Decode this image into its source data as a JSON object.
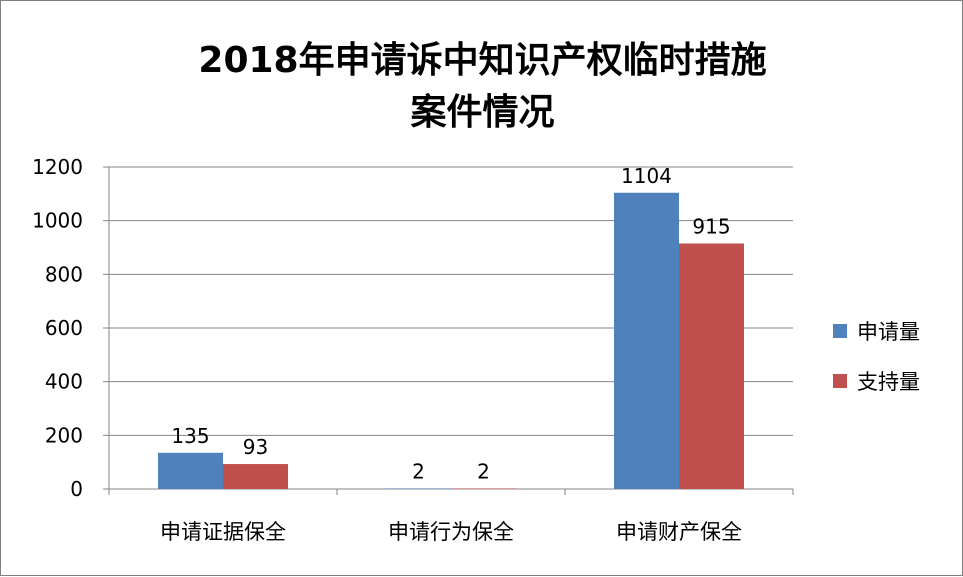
{
  "chart_data": {
    "type": "bar",
    "title_lines": [
      "2018年申请诉中知识产权临时措施",
      "案件情况"
    ],
    "categories": [
      "申请证据保全",
      "申请行为保全",
      "申请财产保全"
    ],
    "series": [
      {
        "name": "申请量",
        "color": "#4f81bd",
        "values": [
          135,
          2,
          1104
        ]
      },
      {
        "name": "支持量",
        "color": "#c0504d",
        "values": [
          93,
          2,
          915
        ]
      }
    ],
    "ylim": [
      0,
      1200
    ],
    "yticks": [
      0,
      200,
      400,
      600,
      800,
      1000,
      1200
    ],
    "grid": true,
    "legend": "right",
    "xlabel": "",
    "ylabel": ""
  }
}
